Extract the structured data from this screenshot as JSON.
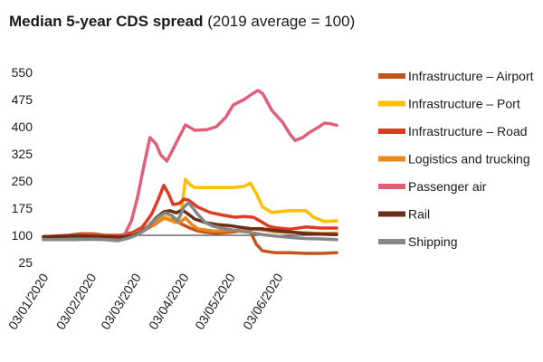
{
  "chart_data": {
    "type": "line",
    "title": "Median 5-year CDS spread",
    "subtitle": "(2019 average = 100)",
    "xlabel": "",
    "ylabel": "",
    "ylim": [
      25,
      550
    ],
    "yticks": [
      25,
      100,
      175,
      250,
      325,
      400,
      475,
      550
    ],
    "xlim": [
      0,
      190
    ],
    "x_tick_labels": [
      {
        "x": 0,
        "label": "03/01/2020"
      },
      {
        "x": 31,
        "label": "03/02/2020"
      },
      {
        "x": 60,
        "label": "03/03/2020"
      },
      {
        "x": 91,
        "label": "03/04/2020"
      },
      {
        "x": 121,
        "label": "03/05/2020"
      },
      {
        "x": 152,
        "label": "03/06/2020"
      }
    ],
    "grid": false,
    "legend_position": "right",
    "reference_line": 100,
    "series": [
      {
        "name": "Infrastructure – Airport",
        "color": "#c5541a",
        "points": [
          [
            0,
            93
          ],
          [
            10,
            92
          ],
          [
            20,
            94
          ],
          [
            30,
            96
          ],
          [
            40,
            96
          ],
          [
            50,
            93
          ],
          [
            58,
            100
          ],
          [
            65,
            113
          ],
          [
            72,
            130
          ],
          [
            79,
            150
          ],
          [
            85,
            140
          ],
          [
            90,
            130
          ],
          [
            95,
            120
          ],
          [
            100,
            112
          ],
          [
            105,
            108
          ],
          [
            112,
            106
          ],
          [
            120,
            108
          ],
          [
            128,
            112
          ],
          [
            133,
            120
          ],
          [
            138,
            75
          ],
          [
            142,
            57
          ],
          [
            150,
            52
          ],
          [
            160,
            52
          ],
          [
            170,
            50
          ],
          [
            180,
            50
          ],
          [
            190,
            52
          ]
        ]
      },
      {
        "name": "Infrastructure – Port",
        "color": "#ffbf00",
        "points": [
          [
            0,
            91
          ],
          [
            10,
            92
          ],
          [
            20,
            94
          ],
          [
            30,
            94
          ],
          [
            40,
            94
          ],
          [
            50,
            92
          ],
          [
            58,
            102
          ],
          [
            65,
            118
          ],
          [
            70,
            130
          ],
          [
            75,
            148
          ],
          [
            80,
            150
          ],
          [
            85,
            135
          ],
          [
            89,
            155
          ],
          [
            92,
            255
          ],
          [
            95,
            240
          ],
          [
            98,
            232
          ],
          [
            105,
            232
          ],
          [
            115,
            232
          ],
          [
            122,
            232
          ],
          [
            130,
            235
          ],
          [
            134,
            244
          ],
          [
            138,
            215
          ],
          [
            142,
            178
          ],
          [
            148,
            163
          ],
          [
            160,
            168
          ],
          [
            170,
            168
          ],
          [
            175,
            150
          ],
          [
            182,
            138
          ],
          [
            190,
            140
          ]
        ]
      },
      {
        "name": "Infrastructure – Road",
        "color": "#e03a24",
        "points": [
          [
            0,
            96
          ],
          [
            8,
            98
          ],
          [
            16,
            100
          ],
          [
            24,
            104
          ],
          [
            32,
            104
          ],
          [
            40,
            100
          ],
          [
            50,
            100
          ],
          [
            58,
            108
          ],
          [
            64,
            122
          ],
          [
            70,
            158
          ],
          [
            74,
            195
          ],
          [
            78,
            238
          ],
          [
            81,
            215
          ],
          [
            84,
            185
          ],
          [
            88,
            188
          ],
          [
            91,
            200
          ],
          [
            94,
            197
          ],
          [
            100,
            178
          ],
          [
            108,
            163
          ],
          [
            116,
            156
          ],
          [
            124,
            150
          ],
          [
            130,
            152
          ],
          [
            136,
            150
          ],
          [
            141,
            138
          ],
          [
            146,
            125
          ],
          [
            150,
            121
          ],
          [
            160,
            117
          ],
          [
            170,
            123
          ],
          [
            180,
            120
          ],
          [
            190,
            120
          ]
        ]
      },
      {
        "name": "Logistics and trucking",
        "color": "#e8891c",
        "points": [
          [
            0,
            95
          ],
          [
            10,
            96
          ],
          [
            20,
            98
          ],
          [
            30,
            100
          ],
          [
            40,
            98
          ],
          [
            50,
            96
          ],
          [
            58,
            102
          ],
          [
            65,
            115
          ],
          [
            72,
            132
          ],
          [
            78,
            148
          ],
          [
            83,
            140
          ],
          [
            88,
            135
          ],
          [
            92,
            148
          ],
          [
            96,
            130
          ],
          [
            100,
            118
          ],
          [
            110,
            112
          ],
          [
            120,
            113
          ],
          [
            130,
            116
          ],
          [
            135,
            118
          ],
          [
            142,
            115
          ],
          [
            150,
            110
          ],
          [
            160,
            108
          ],
          [
            170,
            107
          ],
          [
            180,
            105
          ],
          [
            190,
            106
          ]
        ]
      },
      {
        "name": "Passenger air",
        "color": "#e0607a",
        "points": [
          [
            0,
            88
          ],
          [
            10,
            88
          ],
          [
            20,
            90
          ],
          [
            30,
            92
          ],
          [
            40,
            90
          ],
          [
            48,
            86
          ],
          [
            53,
            105
          ],
          [
            57,
            140
          ],
          [
            61,
            205
          ],
          [
            65,
            290
          ],
          [
            69,
            370
          ],
          [
            73,
            352
          ],
          [
            76,
            322
          ],
          [
            80,
            305
          ],
          [
            84,
            338
          ],
          [
            88,
            372
          ],
          [
            92,
            405
          ],
          [
            95,
            398
          ],
          [
            98,
            390
          ],
          [
            106,
            392
          ],
          [
            112,
            400
          ],
          [
            118,
            425
          ],
          [
            123,
            460
          ],
          [
            130,
            475
          ],
          [
            135,
            490
          ],
          [
            139,
            500
          ],
          [
            142,
            492
          ],
          [
            148,
            445
          ],
          [
            155,
            412
          ],
          [
            160,
            378
          ],
          [
            163,
            362
          ],
          [
            168,
            370
          ],
          [
            172,
            383
          ],
          [
            178,
            398
          ],
          [
            182,
            410
          ],
          [
            186,
            408
          ],
          [
            190,
            404
          ]
        ]
      },
      {
        "name": "Rail",
        "color": "#6b2e18",
        "points": [
          [
            0,
            96
          ],
          [
            10,
            97
          ],
          [
            20,
            98
          ],
          [
            30,
            98
          ],
          [
            40,
            97
          ],
          [
            50,
            95
          ],
          [
            58,
            100
          ],
          [
            63,
            108
          ],
          [
            68,
            125
          ],
          [
            73,
            148
          ],
          [
            78,
            165
          ],
          [
            82,
            168
          ],
          [
            86,
            162
          ],
          [
            90,
            170
          ],
          [
            94,
            158
          ],
          [
            98,
            145
          ],
          [
            105,
            135
          ],
          [
            112,
            130
          ],
          [
            120,
            127
          ],
          [
            128,
            122
          ],
          [
            135,
            118
          ],
          [
            142,
            118
          ],
          [
            150,
            113
          ],
          [
            160,
            109
          ],
          [
            170,
            105
          ],
          [
            180,
            103
          ],
          [
            190,
            102
          ]
        ]
      },
      {
        "name": "Shipping",
        "color": "#878787",
        "points": [
          [
            0,
            88
          ],
          [
            10,
            88
          ],
          [
            20,
            88
          ],
          [
            30,
            89
          ],
          [
            40,
            88
          ],
          [
            48,
            85
          ],
          [
            55,
            92
          ],
          [
            60,
            100
          ],
          [
            65,
            112
          ],
          [
            70,
            135
          ],
          [
            75,
            152
          ],
          [
            79,
            162
          ],
          [
            83,
            155
          ],
          [
            87,
            140
          ],
          [
            91,
            178
          ],
          [
            94,
            190
          ],
          [
            97,
            175
          ],
          [
            100,
            158
          ],
          [
            105,
            135
          ],
          [
            110,
            125
          ],
          [
            118,
            118
          ],
          [
            126,
            112
          ],
          [
            134,
            108
          ],
          [
            142,
            102
          ],
          [
            150,
            98
          ],
          [
            160,
            94
          ],
          [
            170,
            91
          ],
          [
            180,
            90
          ],
          [
            190,
            88
          ]
        ]
      }
    ]
  }
}
